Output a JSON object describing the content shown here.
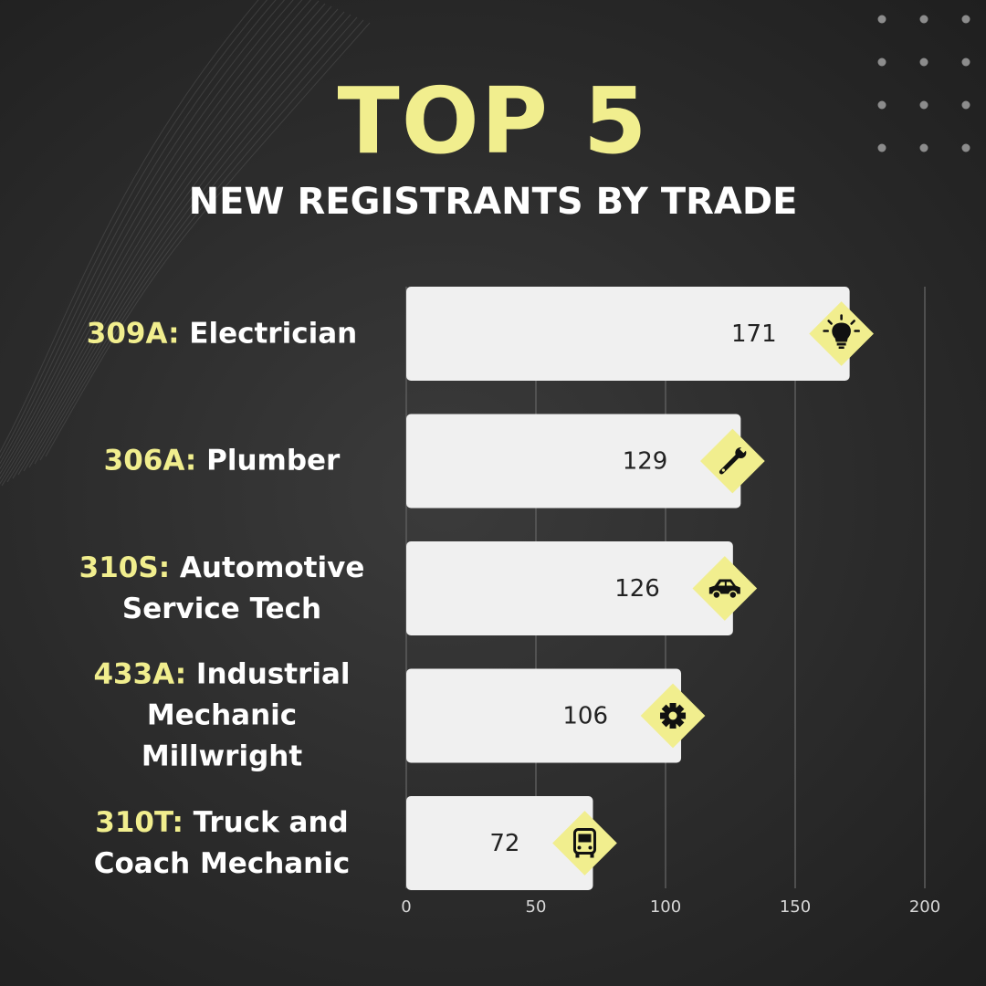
{
  "title": "TOP 5",
  "subtitle": "NEW REGISTRANTS BY TRADE",
  "colors": {
    "accent": "#f1ee8e",
    "bar": "#f0f0f0",
    "background": "#2e2e2e",
    "text": "#ffffff",
    "value_text": "#222222"
  },
  "chart_data": {
    "type": "bar",
    "orientation": "horizontal",
    "categories": [
      {
        "code": "309A:",
        "name": "Electrician",
        "icon": "lightbulb-icon"
      },
      {
        "code": "306A:",
        "name": "Plumber",
        "icon": "wrench-icon"
      },
      {
        "code": "310S:",
        "name": "Automotive Service Tech",
        "icon": "car-icon"
      },
      {
        "code": "433A:",
        "name": "Industrial Mechanic Millwright",
        "icon": "gear-icon"
      },
      {
        "code": "310T:",
        "name": "Truck and Coach Mechanic",
        "icon": "bus-icon"
      }
    ],
    "values": [
      171,
      129,
      126,
      106,
      72
    ],
    "value_labels": [
      "171",
      "129",
      "126",
      "106",
      "72"
    ],
    "xlim": [
      0,
      200
    ],
    "xticks": [
      0,
      50,
      100,
      150,
      200
    ],
    "xtick_labels": [
      "0",
      "50",
      "100",
      "150",
      "200"
    ],
    "grid": "vertical",
    "legend": "none"
  }
}
